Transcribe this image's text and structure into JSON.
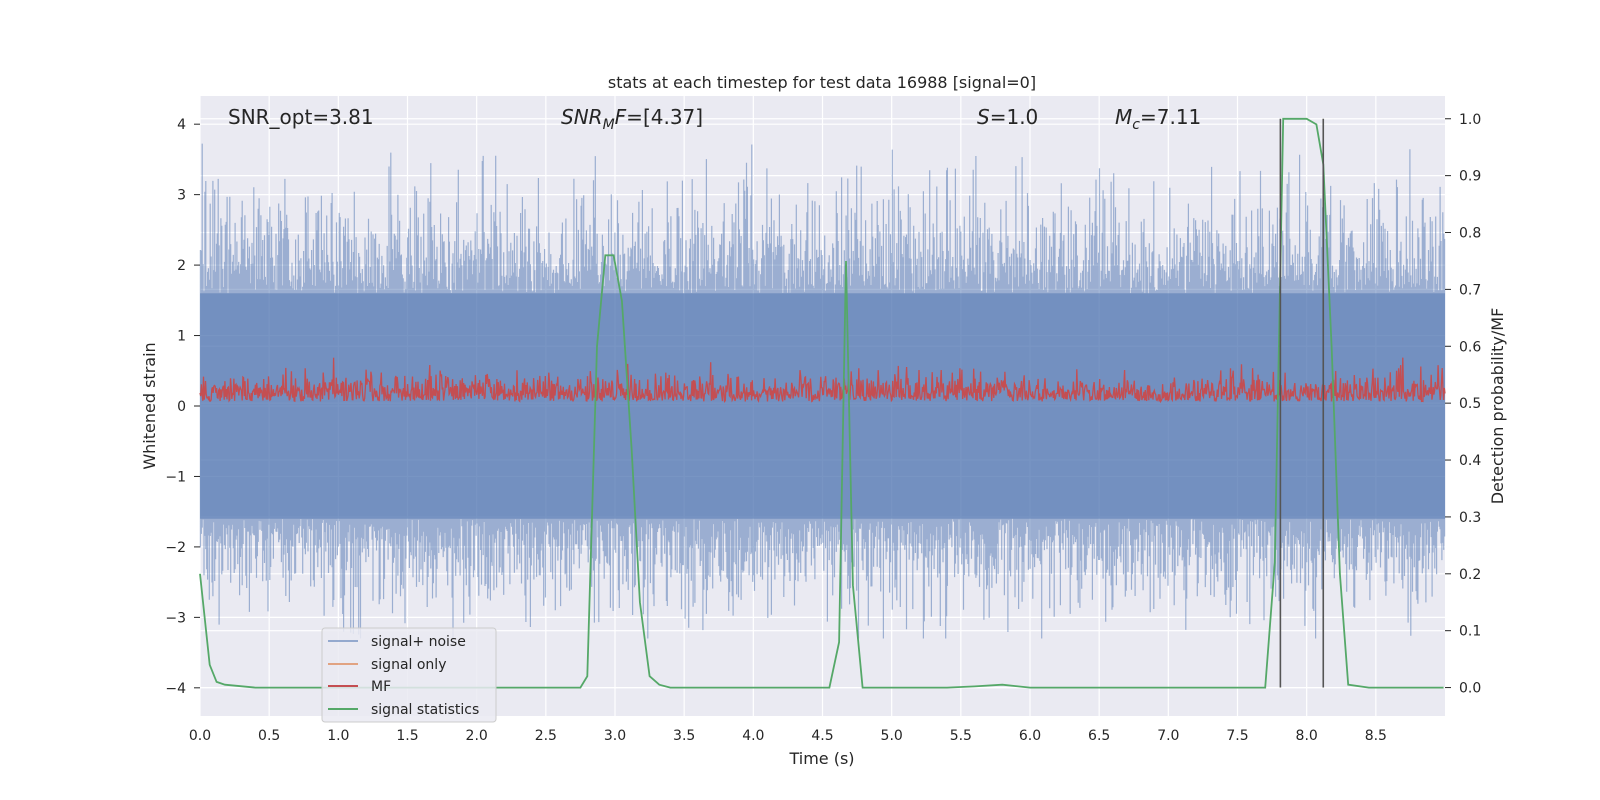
{
  "chart_data": {
    "type": "line",
    "title": "stats at each timestep for test data 16988 [signal=0]",
    "xlabel": "Time (s)",
    "ylabel": "Whitened strain",
    "ylabel_right": "Detection probability/MF",
    "xlim": [
      0.0,
      9.0
    ],
    "ylim": [
      -4.4,
      4.4
    ],
    "ylim_right": [
      -0.05,
      1.04
    ],
    "xticks": [
      "0.0",
      "0.5",
      "1.0",
      "1.5",
      "2.0",
      "2.5",
      "3.0",
      "3.5",
      "4.0",
      "4.5",
      "5.0",
      "5.5",
      "6.0",
      "6.5",
      "7.0",
      "7.5",
      "8.0",
      "8.5"
    ],
    "yticks": [
      "4",
      "3",
      "2",
      "1",
      "0",
      "−1",
      "−2",
      "−3",
      "−4"
    ],
    "yticks_right": [
      "1.0",
      "0.9",
      "0.8",
      "0.7",
      "0.6",
      "0.5",
      "0.4",
      "0.3",
      "0.2",
      "0.1",
      "0.0"
    ],
    "grid": true,
    "legend_position": "lower-left",
    "annotations": {
      "snr_opt": "SNR_opt=3.81",
      "snr_mf": "[4.37]",
      "s": "1.0",
      "mc": "7.11"
    },
    "colors": {
      "background": "#eaeaf2",
      "grid": "#ffffff",
      "noise": "#4c72b0",
      "signal": "#dd8452",
      "mf": "#c44e52",
      "stats": "#55a868",
      "vline": "#555555"
    },
    "series": [
      {
        "name": "signal+ noise",
        "axis": "left",
        "amplitude_range": [
          -3.3,
          4.0
        ],
        "band_range": [
          -1.6,
          1.6
        ]
      },
      {
        "name": "signal only",
        "axis": "left",
        "values": []
      },
      {
        "name": "MF",
        "axis": "right",
        "range": [
          0.5,
          0.58
        ]
      },
      {
        "name": "signal statistics",
        "axis": "right",
        "x": [
          0.0,
          0.07,
          0.12,
          0.18,
          0.4,
          1.0,
          2.0,
          2.75,
          2.8,
          2.87,
          2.93,
          2.99,
          3.05,
          3.12,
          3.18,
          3.25,
          3.32,
          3.4,
          4.0,
          4.55,
          4.62,
          4.67,
          4.72,
          4.79,
          4.85,
          5.4,
          5.6,
          5.8,
          6.0,
          7.0,
          7.7,
          7.77,
          7.83,
          7.89,
          8.0,
          8.07,
          8.12,
          8.18,
          8.24,
          8.3,
          8.45,
          8.99
        ],
        "values": [
          0.2,
          0.04,
          0.01,
          0.005,
          0.0,
          0.0,
          0.0,
          0.0,
          0.02,
          0.6,
          0.76,
          0.76,
          0.68,
          0.42,
          0.15,
          0.02,
          0.005,
          0.0,
          0.0,
          0.0,
          0.08,
          0.75,
          0.18,
          0.0,
          0.0,
          0.0,
          0.002,
          0.005,
          0.0,
          0.0,
          0.0,
          0.22,
          1.0,
          1.0,
          1.0,
          0.99,
          0.92,
          0.6,
          0.2,
          0.005,
          0.0,
          0.0
        ]
      }
    ],
    "vlines": [
      7.81,
      8.12
    ]
  }
}
